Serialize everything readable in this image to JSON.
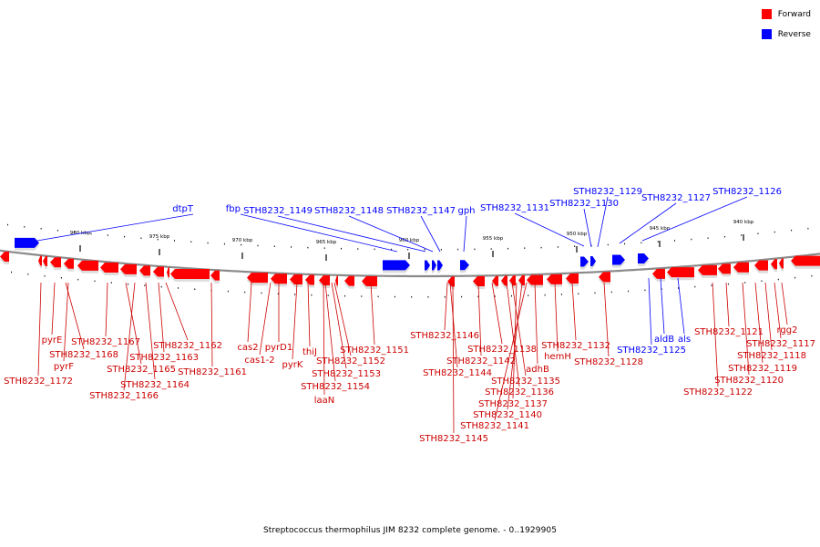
{
  "legend": {
    "forward_label": "Forward",
    "reverse_label": "Reverse",
    "forward_color": "#ff0000",
    "reverse_color": "#0000ff"
  },
  "caption": "Streptococcus thermophilus JIM 8232 complete genome. - 0..1929905",
  "scale_labels": [
    "980 kbp",
    "975 kbp",
    "970 kbp",
    "965 kbp",
    "960 kbp",
    "955 kbp",
    "950 kbp",
    "945 kbp",
    "940 kbp"
  ],
  "reverse_genes": [
    "dtpT",
    "fbp",
    "STH8232_1149",
    "STH8232_1148",
    "STH8232_1147",
    "gph",
    "STH8232_1131",
    "STH8232_1130",
    "STH8232_1129",
    "STH8232_1127",
    "STH8232_1126",
    "STH8232_1125",
    "aldB",
    "als"
  ],
  "forward_genes": [
    "pyrE",
    "STH8232_1168",
    "pyrF",
    "STH8232_1172",
    "STH8232_1167",
    "STH8232_1165",
    "STH8232_1166",
    "STH8232_1164",
    "STH8232_1163",
    "STH8232_1162",
    "STH8232_1161",
    "cas2",
    "cas1-2",
    "pyrD1",
    "pyrK",
    "thiJ",
    "STH8232_1152",
    "STH8232_1153",
    "STH8232_1154",
    "laaN",
    "STH8232_1151",
    "STH8232_1146",
    "STH8232_1144",
    "STH8232_1145",
    "STH8232_1142",
    "STH8232_1138",
    "STH8232_1136",
    "STH8232_1135",
    "STH8232_1137",
    "STH8232_1140",
    "STH8232_1141",
    "adhB",
    "hemH",
    "STH8232_1132",
    "STH8232_1128",
    "STH8232_1121",
    "STH8232_1122",
    "STH8232_1120",
    "STH8232_1119",
    "STH8232_1118",
    "STH8232_1117",
    "rgg2"
  ]
}
